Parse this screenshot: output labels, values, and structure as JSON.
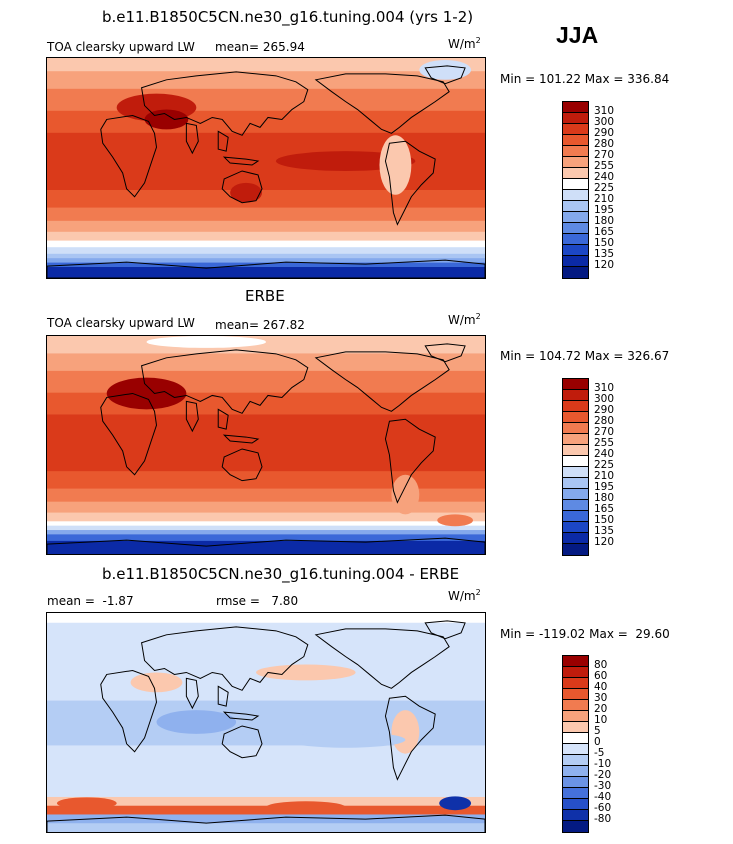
{
  "season": "JJA",
  "units": {
    "base": "W/m",
    "exp": "2"
  },
  "panels": [
    {
      "id": "model",
      "title": "b.e11.B1850C5CN.ne30_g16.tuning.004 (yrs 1-2)",
      "label": "TOA clearsky upward LW",
      "stats": "mean= 265.94",
      "minmax": "Min = 101.22 Max = 336.84",
      "colorbar": {
        "levels": [
          "310",
          "300",
          "290",
          "280",
          "270",
          "255",
          "240",
          "225",
          "210",
          "195",
          "180",
          "165",
          "150",
          "135",
          "120"
        ],
        "colors": [
          "#990000",
          "#c01c0c",
          "#da3a1a",
          "#e8582e",
          "#f17b50",
          "#f7a27c",
          "#fbc8ae",
          "#ffffff",
          "#cfdff8",
          "#a9c5f3",
          "#84a9ec",
          "#5e8ae3",
          "#3a68d8",
          "#1c47c5",
          "#0b2aa6",
          "#041a82"
        ]
      }
    },
    {
      "id": "obs",
      "title": "ERBE",
      "label": "TOA clearsky upward LW",
      "stats": "mean= 267.82",
      "minmax": "Min = 104.72 Max = 326.67",
      "colorbar": {
        "levels": [
          "310",
          "300",
          "290",
          "280",
          "270",
          "255",
          "240",
          "225",
          "210",
          "195",
          "180",
          "165",
          "150",
          "135",
          "120"
        ],
        "colors": [
          "#990000",
          "#c01c0c",
          "#da3a1a",
          "#e8582e",
          "#f17b50",
          "#f7a27c",
          "#fbc8ae",
          "#ffffff",
          "#cfdff8",
          "#a9c5f3",
          "#84a9ec",
          "#5e8ae3",
          "#3a68d8",
          "#1c47c5",
          "#0b2aa6",
          "#041a82"
        ]
      }
    },
    {
      "id": "diff",
      "title": "b.e11.B1850C5CN.ne30_g16.tuning.004 - ERBE",
      "mean": "mean =  -1.87",
      "rmse": "rmse =   7.80",
      "minmax": "Min = -119.02 Max =  29.60",
      "colorbar": {
        "levels": [
          "80",
          "60",
          "40",
          "30",
          "20",
          "10",
          "5",
          "0",
          "-5",
          "-10",
          "-20",
          "-30",
          "-40",
          "-60",
          "-80"
        ],
        "colors": [
          "#990000",
          "#c01c0c",
          "#da3a1a",
          "#e8582e",
          "#f17b50",
          "#f7a27c",
          "#fbc8ae",
          "#ffffff",
          "#d6e4fa",
          "#b4cdf4",
          "#8fb1ee",
          "#6b93e5",
          "#4571db",
          "#2650c8",
          "#0f31a9",
          "#041a82"
        ]
      }
    }
  ]
}
